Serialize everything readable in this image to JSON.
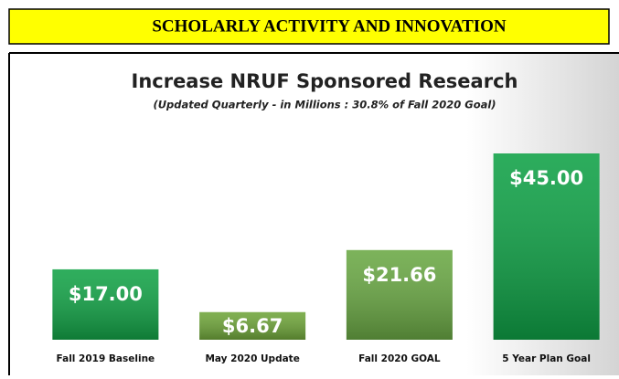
{
  "header": {
    "title": "SCHOLARLY  ACTIVITY AND INNOVATION"
  },
  "chart_data": {
    "type": "bar",
    "title": "Increase NRUF Sponsored Research",
    "subtitle": "(Updated Quarterly - in Millions : 30.8% of Fall 2020 Goal)",
    "categories": [
      "Fall 2019 Baseline",
      "May 2020 Update",
      "Fall 2020 GOAL",
      "5 Year Plan Goal"
    ],
    "values": [
      17.0,
      6.67,
      21.66,
      45.0
    ],
    "value_labels": [
      "$17.00",
      "$6.67",
      "$21.66",
      "$45.00"
    ],
    "colors": [
      "#13a347",
      "#6fa53a",
      "#6aa844",
      "#0fa146"
    ]
  }
}
